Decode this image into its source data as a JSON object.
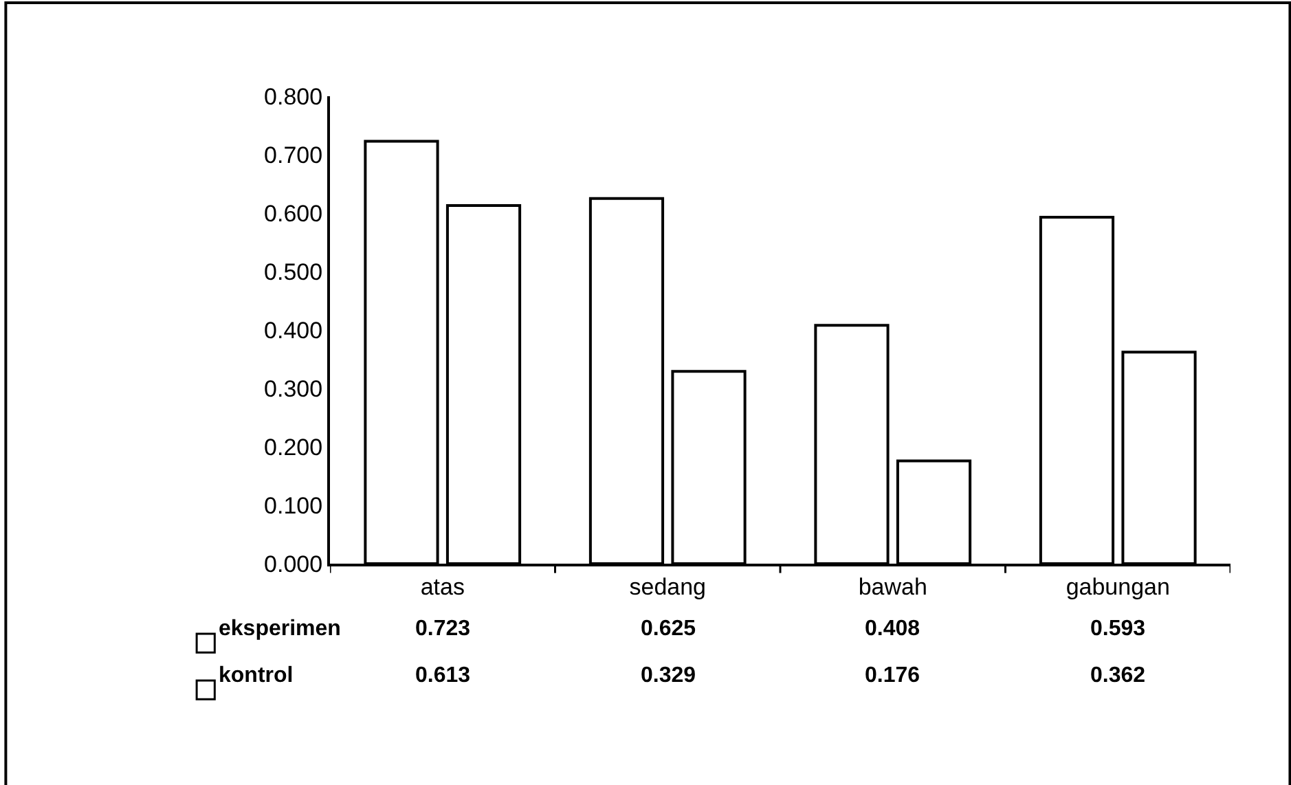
{
  "chart_data": {
    "type": "bar",
    "categories": [
      "atas",
      "sedang",
      "bawah",
      "gabungan"
    ],
    "series": [
      {
        "name": "eksperimen",
        "color": "#ffffff",
        "values": [
          0.723,
          0.625,
          0.408,
          0.593
        ]
      },
      {
        "name": "kontrol",
        "color": "#ffffff",
        "values": [
          0.613,
          0.329,
          0.176,
          0.362
        ]
      }
    ],
    "ylim": [
      0,
      0.8
    ],
    "yticks": [
      {
        "value": 0,
        "label": "0.000"
      },
      {
        "value": 0.1,
        "label": "0.100"
      },
      {
        "value": 0.2,
        "label": "0.200"
      },
      {
        "value": 0.3,
        "label": "0.300"
      },
      {
        "value": 0.4,
        "label": "0.400"
      },
      {
        "value": 0.5,
        "label": "0.500"
      },
      {
        "value": 0.6,
        "label": "0.600"
      },
      {
        "value": 0.7,
        "label": "0.700"
      },
      {
        "value": 0.8,
        "label": "0.800"
      }
    ],
    "data_labels": true,
    "legend": "bottom",
    "grid": false
  }
}
